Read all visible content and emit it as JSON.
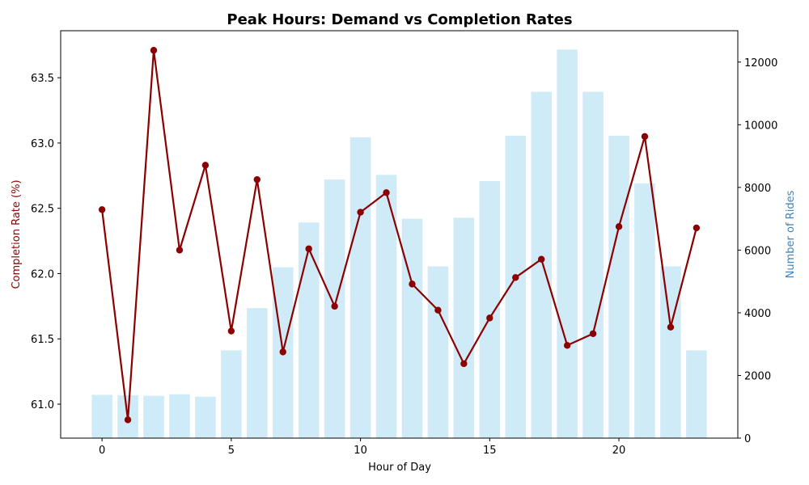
{
  "chart_data": {
    "type": "bar+line",
    "title": "Peak Hours: Demand vs Completion Rates",
    "xlabel": "Hour of Day",
    "ylabel_left": "Completion Rate (%)",
    "ylabel_right": "Number of Rides",
    "x": [
      0,
      1,
      2,
      3,
      4,
      5,
      6,
      7,
      8,
      9,
      10,
      11,
      12,
      13,
      14,
      15,
      16,
      17,
      18,
      19,
      20,
      21,
      22,
      23
    ],
    "x_ticks": [
      0,
      5,
      10,
      15,
      20
    ],
    "xlim": [
      -1.6,
      24.6
    ],
    "ylim_left": [
      60.74,
      63.86
    ],
    "ylim_right": [
      0,
      13000
    ],
    "yticks_left": [
      61.0,
      61.5,
      62.0,
      62.5,
      63.0,
      63.5
    ],
    "yticks_right": [
      0,
      2000,
      4000,
      6000,
      8000,
      10000,
      12000
    ],
    "yticks_left_labels": [
      "61.0",
      "61.5",
      "62.0",
      "62.5",
      "63.0",
      "63.5"
    ],
    "yticks_right_labels": [
      "0",
      "2000",
      "4000",
      "6000",
      "8000",
      "10000",
      "12000"
    ],
    "bars": {
      "values": [
        1380,
        1370,
        1350,
        1400,
        1320,
        2800,
        4150,
        5450,
        6880,
        8250,
        9600,
        8400,
        7000,
        5480,
        7030,
        8200,
        9650,
        11050,
        12400,
        11050,
        9650,
        8130,
        5480,
        2800
      ],
      "color": "#87ceeb"
    },
    "line": {
      "values": [
        62.49,
        60.88,
        63.71,
        62.18,
        62.83,
        61.56,
        62.72,
        61.4,
        62.19,
        61.75,
        62.47,
        62.62,
        61.92,
        61.72,
        61.31,
        61.66,
        61.97,
        62.11,
        61.45,
        61.54,
        62.36,
        63.05,
        61.59,
        62.35
      ],
      "color": "#8b0000"
    },
    "colors": {
      "left_axis_label": "#8b0000",
      "right_axis_label": "#4682b4"
    }
  }
}
